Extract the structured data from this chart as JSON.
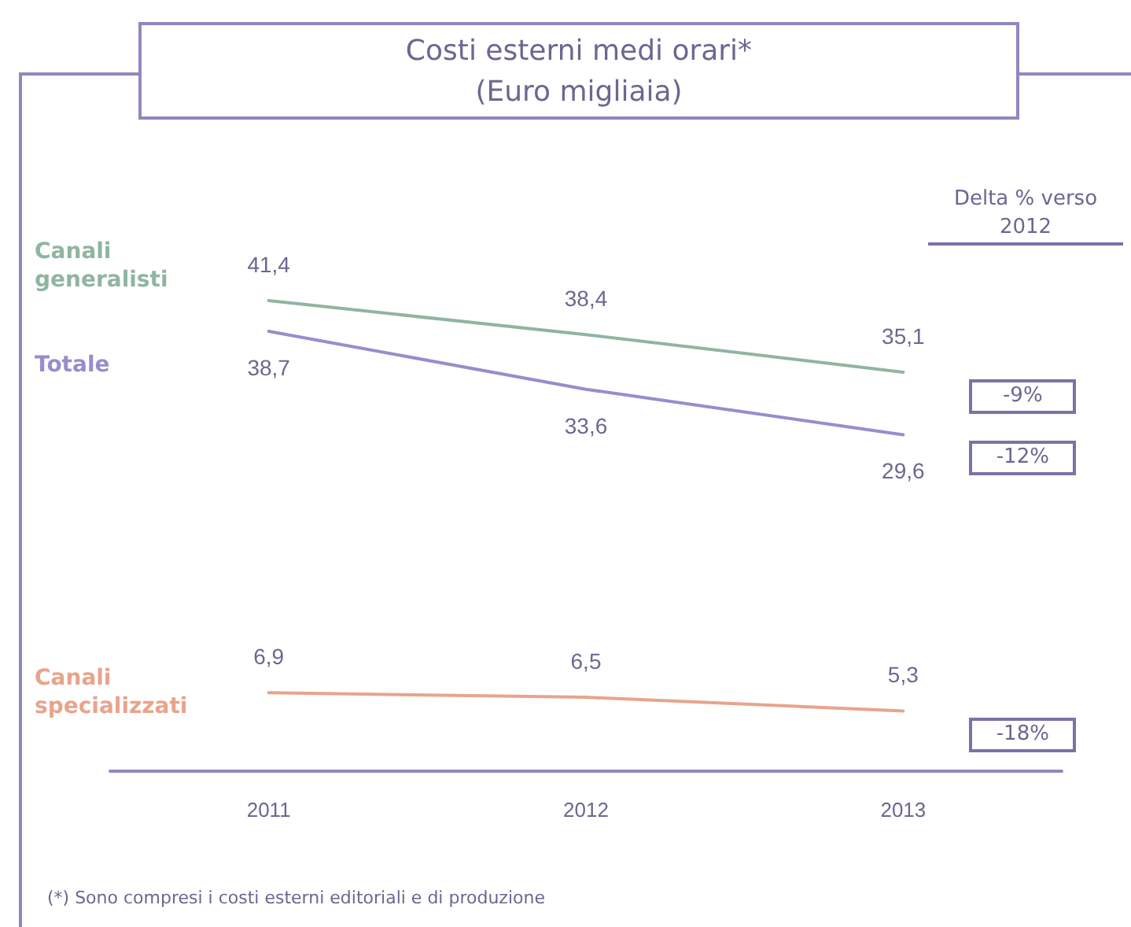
{
  "chart_data": {
    "type": "line",
    "title": "Costi esterni medi orari*",
    "subtitle": "(Euro migliaia)",
    "categories": [
      "2011",
      "2012",
      "2013"
    ],
    "tick_labels": "x",
    "grid": false,
    "legend": false,
    "marker": "none",
    "line_style": "solid",
    "series": [
      {
        "name": "Canali generalisti",
        "color": "#8fb5a0",
        "values": [
          41.4,
          38.4,
          35.1
        ],
        "value_labels": [
          "41,4",
          "38,4",
          "35,1"
        ]
      },
      {
        "name": "Totale",
        "color": "#9a8ccc",
        "values": [
          38.7,
          33.6,
          29.6
        ],
        "value_labels": [
          "38,7",
          "33,6",
          "29,6"
        ]
      },
      {
        "name": "Canali specializzati",
        "color": "#e8a48c",
        "values": [
          6.9,
          6.5,
          5.3
        ],
        "value_labels": [
          "6,9",
          "6,5",
          "5,3"
        ]
      }
    ],
    "annotations": [
      "Delta % verso 2012",
      "-9%",
      "-12%",
      "-18%",
      "(*) Sono compresi i costi esterni editoriali e di produzione"
    ]
  }
}
